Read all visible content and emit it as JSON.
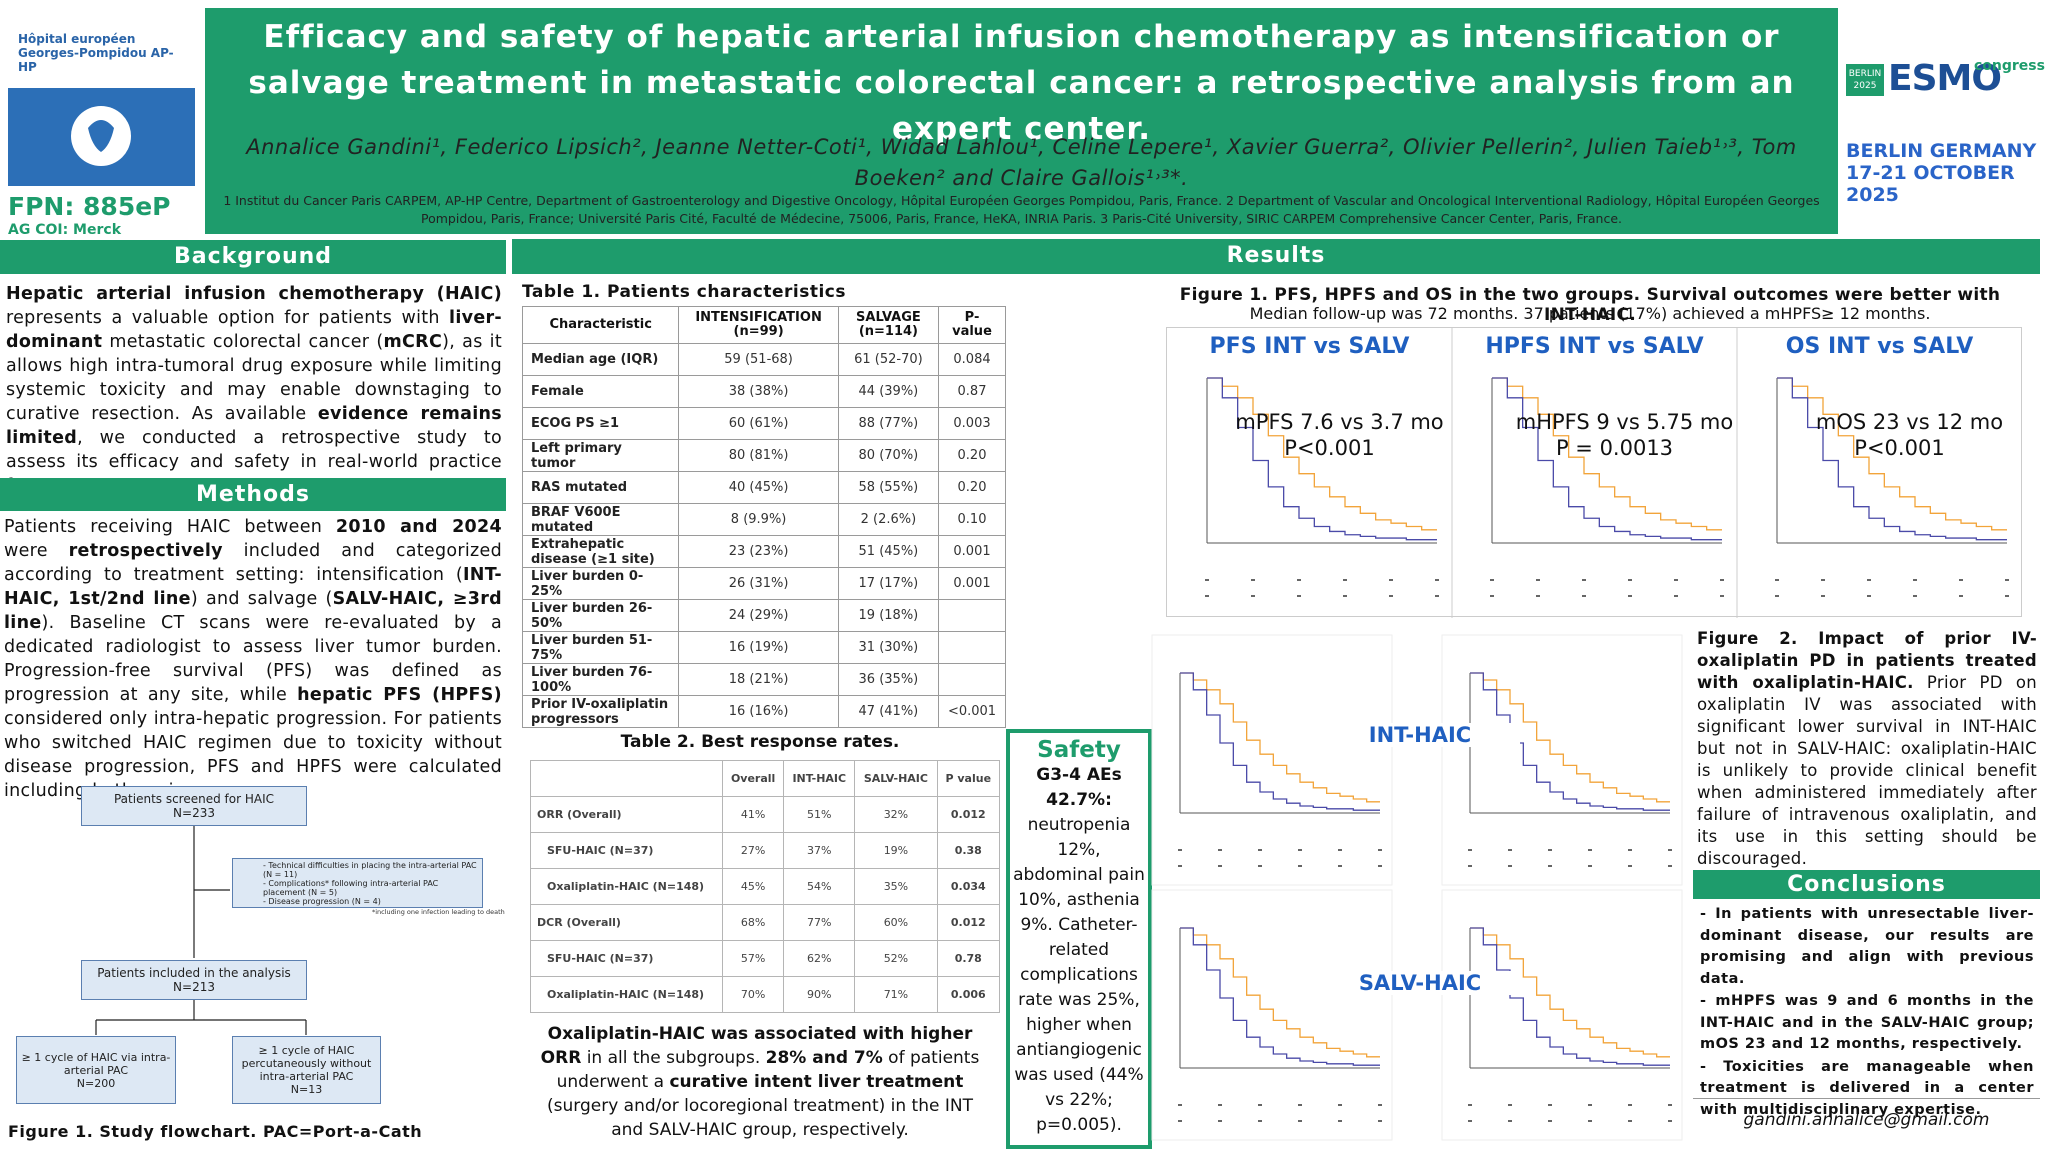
{
  "header": {
    "title": "Efficacy and safety of hepatic arterial infusion chemotherapy as intensification or salvage treatment in metastatic colorectal cancer: a retrospective analysis from an expert center.",
    "authors": "Annalice Gandini¹, Federico Lipsich², Jeanne Netter-Coti¹, Widad Lahlou¹, Celine Lepere¹, Xavier Guerra², Olivier Pellerin², Julien Taieb¹˒³, Tom Boeken² and Claire Gallois¹˒³*.",
    "affiliations": "1 Institut du Cancer Paris CARPEM, AP-HP Centre, Department of Gastroenterology and Digestive Oncology, Hôpital Européen Georges Pompidou, Paris, France. 2 Department of Vascular and Oncological Interventional Radiology, Hôpital Européen Georges Pompidou, Paris, France; Université Paris Cité, Faculté de Médecine, 75006, Paris, France, HeKA, INRIA Paris. 3 Paris-Cité University, SIRIC CARPEM Comprehensive Cancer Center, Paris, France.",
    "logo_text": "Hôpital européen Georges-Pompidou AP-HP",
    "fpn": "FPN: 885eP",
    "coi": "AG COI: Merck",
    "congress_badge": "BERLIN 2025",
    "congress_name": "ESMO",
    "congress_word": "congress",
    "congress_place": "BERLIN GERMANY",
    "congress_dates": "17-21 OCTOBER 2025"
  },
  "background": {
    "heading": "Background",
    "runs": [
      {
        "t": "Hepatic arterial infusion chemotherapy (HAIC)",
        "b": true
      },
      {
        "t": " represents a valuable option for patients with "
      },
      {
        "t": "liver-dominant",
        "b": true
      },
      {
        "t": " metastatic colorectal cancer ("
      },
      {
        "t": "mCRC",
        "b": true
      },
      {
        "t": "), as it allows high intra-tumoral drug exposure while limiting systemic toxicity and may enable downstaging to curative resection. As available "
      },
      {
        "t": "evidence remains limited",
        "b": true
      },
      {
        "t": ", we conducted a retrospective study to assess its efficacy and safety in real-world practice from an expert center."
      }
    ]
  },
  "methods": {
    "heading": "Methods",
    "runs": [
      {
        "t": "Patients receiving HAIC between "
      },
      {
        "t": "2010 and 2024",
        "b": true
      },
      {
        "t": " were "
      },
      {
        "t": "retrospectively",
        "b": true
      },
      {
        "t": " included and categorized according to treatment setting: intensification ("
      },
      {
        "t": "INT-HAIC, 1st/2nd line",
        "b": true
      },
      {
        "t": ") and salvage ("
      },
      {
        "t": "SALV-HAIC, ≥3rd line",
        "b": true
      },
      {
        "t": "). Baseline CT scans were re-evaluated by a dedicated radiologist to assess liver tumor burden. Progression-free survival (PFS) was defined as progression at any site, while "
      },
      {
        "t": "hepatic PFS (HPFS)",
        "b": true
      },
      {
        "t": " considered only intra-hepatic progression. For patients who switched HAIC regimen due to toxicity without disease progression, PFS and HPFS were calculated including both regimens."
      }
    ]
  },
  "flowchart": {
    "screened": "Patients screened for HAIC",
    "screened_n": "N=233",
    "exclusions": [
      "- Technical difficulties in placing the intra-arterial PAC (N = 11)",
      "- Complications* following intra-arterial PAC placement (N = 5)",
      "- Disease progression (N = 4)"
    ],
    "footnote": "*including one infection leading to death",
    "included": "Patients included in the analysis",
    "included_n": "N=213",
    "arm_pac": "≥ 1 cycle of HAIC via intra-arterial PAC",
    "arm_pac_n": "N=200",
    "arm_perc": "≥ 1 cycle of HAIC percutaneously without intra-arterial PAC",
    "arm_perc_n": "N=13",
    "caption": "Figure 1. Study flowchart. PAC=Port-a-Cath"
  },
  "table1": {
    "caption": "Table 1. Patients characteristics",
    "header": [
      "Characteristic",
      "INTENSIFICATION (n=99)",
      "SALVAGE (n=114)",
      "P-value"
    ],
    "rows": [
      [
        "Median age (IQR)",
        "59 (51-68)",
        "61 (52-70)",
        "0.084"
      ],
      [
        "Female",
        "38 (38%)",
        "44 (39%)",
        "0.87"
      ],
      [
        "ECOG PS ≥1",
        "60 (61%)",
        "88 (77%)",
        "0.003"
      ],
      [
        "Left primary tumor",
        "80 (81%)",
        "80 (70%)",
        "0.20"
      ],
      [
        "RAS mutated",
        "40 (45%)",
        "58 (55%)",
        "0.20"
      ],
      [
        "BRAF V600E mutated",
        "8 (9.9%)",
        "2 (2.6%)",
        "0.10"
      ],
      [
        "Extrahepatic disease (≥1 site)",
        "23 (23%)",
        "51 (45%)",
        "0.001"
      ],
      [
        "Liver burden 0-25%",
        "26 (31%)",
        "17 (17%)",
        "0.001"
      ],
      [
        "Liver burden 26-50%",
        "24 (29%)",
        "19 (18%)",
        null
      ],
      [
        "Liver burden 51-75%",
        "16 (19%)",
        "31 (30%)",
        null
      ],
      [
        "Liver burden 76-100%",
        "18 (21%)",
        "36 (35%)",
        null
      ],
      [
        "Prior IV-oxaliplatin progressors",
        "16 (16%)",
        "47 (41%)",
        "<0.001"
      ]
    ]
  },
  "table2": {
    "caption": "Table 2. Best response rates.",
    "header": [
      null,
      "Overall",
      "INT-HAIC",
      "SALV-HAIC",
      "P value"
    ],
    "rows": [
      [
        "ORR (Overall)",
        "41%",
        "51%",
        "32%",
        "0.012"
      ],
      [
        "SFU-HAIC (N=37)",
        "27%",
        "37%",
        "19%",
        "0.38"
      ],
      [
        "Oxaliplatin-HAIC (N=148)",
        "45%",
        "54%",
        "35%",
        "0.034"
      ],
      [
        "DCR (Overall)",
        "68%",
        "77%",
        "60%",
        "0.012"
      ],
      [
        "SFU-HAIC (N=37)",
        "57%",
        "62%",
        "52%",
        "0.78"
      ],
      [
        "Oxaliplatin-HAIC (N=148)",
        "70%",
        "90%",
        "71%",
        "0.006"
      ]
    ],
    "runs": [
      {
        "t": "Oxaliplatin-HAIC was associated with higher ORR",
        "b": true
      },
      {
        "t": " in all the subgroups. "
      },
      {
        "t": "28% and 7%",
        "b": true
      },
      {
        "t": " of patients underwent a "
      },
      {
        "t": "curative intent liver treatment",
        "b": true
      },
      {
        "t": " (surgery and/or locoregional treatment) in the INT and SALV-HAIC group, respectively."
      }
    ]
  },
  "safety": {
    "heading": "Safety",
    "runs": [
      {
        "t": "G3-4 AEs 42.7%:",
        "b": true
      },
      {
        "t": " neutropenia 12%, abdominal pain 10%, asthenia 9%. Catheter-related complications rate was 25%, higher when antiangiogenic was used (44% vs 22%; p=0.005)."
      }
    ]
  },
  "results": {
    "heading": "Results",
    "figure1_caption": "Figure 1. PFS, HPFS and OS in the two groups. Survival outcomes were better with INT-HAIC.",
    "figure1_note": "Median follow-up was 72 months. 37 patients (17%) achieved a mHPFS≥ 12 months.",
    "panels": [
      {
        "title": "PFS INT vs SALV",
        "median": "mPFS 7.6 vs 3.7 mo",
        "p": "P<0.001"
      },
      {
        "title": "HPFS INT vs SALV",
        "median": "mHPFS 9 vs 5.75 mo",
        "p": "P = 0.0013"
      },
      {
        "title": "OS INT vs SALV",
        "median": "mOS 23 vs 12 mo",
        "p": "P<0.001"
      }
    ],
    "figure2_labels": [
      "INT-HAIC",
      "SALV-HAIC"
    ],
    "figure2_runs": [
      {
        "t": "Figure 2. Impact of prior IV-oxaliplatin PD in patients treated with oxaliplatin-HAIC.",
        "b": true
      },
      {
        "t": " Prior PD on oxaliplatin IV was associated with significant lower survival in INT-HAIC but not in SALV-HAIC: oxaliplatin-HAIC is unlikely to provide clinical benefit when administered immediately after failure of intravenous oxaliplatin, and its use in this setting should be discouraged."
      }
    ]
  },
  "conclusions": {
    "heading": "Conclusions",
    "items": [
      "- In patients with unresectable liver-dominant disease, our results are promising and align with previous data.",
      "- mHPFS was 9 and 6 months in the INT-HAIC and in the SALV-HAIC group; mOS 23 and 12 months, respectively.",
      "- Toxicities are manageable when treatment is delivered in a center with multidisciplinary expertise."
    ],
    "email": "gandini.annalice@gmail.com"
  }
}
